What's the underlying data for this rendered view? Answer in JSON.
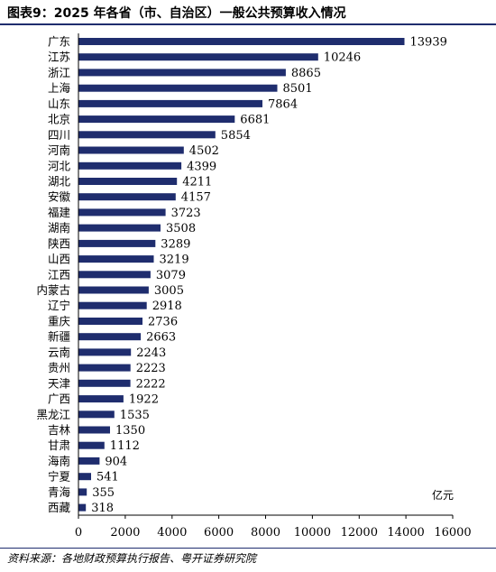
{
  "title": "图表9：2025 年各省（市、自治区）一般公共预算收入情况",
  "source": "资料来源：各地财政预算执行报告、粤开证券研究院",
  "chart_data": {
    "type": "bar",
    "orientation": "horizontal",
    "title": "图表9：2025 年各省（市、自治区）一般公共预算收入情况",
    "unit_label": "亿元",
    "categories": [
      "广东",
      "江苏",
      "浙江",
      "上海",
      "山东",
      "北京",
      "四川",
      "河南",
      "河北",
      "湖北",
      "安徽",
      "福建",
      "湖南",
      "陕西",
      "山西",
      "江西",
      "内蒙古",
      "辽宁",
      "重庆",
      "新疆",
      "云南",
      "贵州",
      "天津",
      "广西",
      "黑龙江",
      "吉林",
      "甘肃",
      "海南",
      "宁夏",
      "青海",
      "西藏"
    ],
    "values": [
      13939,
      10246,
      8865,
      8501,
      7864,
      6681,
      5854,
      4502,
      4399,
      4211,
      4157,
      3723,
      3508,
      3289,
      3219,
      3079,
      3005,
      2918,
      2736,
      2663,
      2243,
      2223,
      2222,
      1922,
      1535,
      1350,
      1112,
      904,
      541,
      355,
      318
    ],
    "xlim": [
      0,
      16000
    ],
    "xticks": [
      0,
      2000,
      4000,
      6000,
      8000,
      10000,
      12000,
      14000,
      16000
    ],
    "bar_color": "#1f2d6e",
    "grid": false,
    "legend": "none"
  }
}
